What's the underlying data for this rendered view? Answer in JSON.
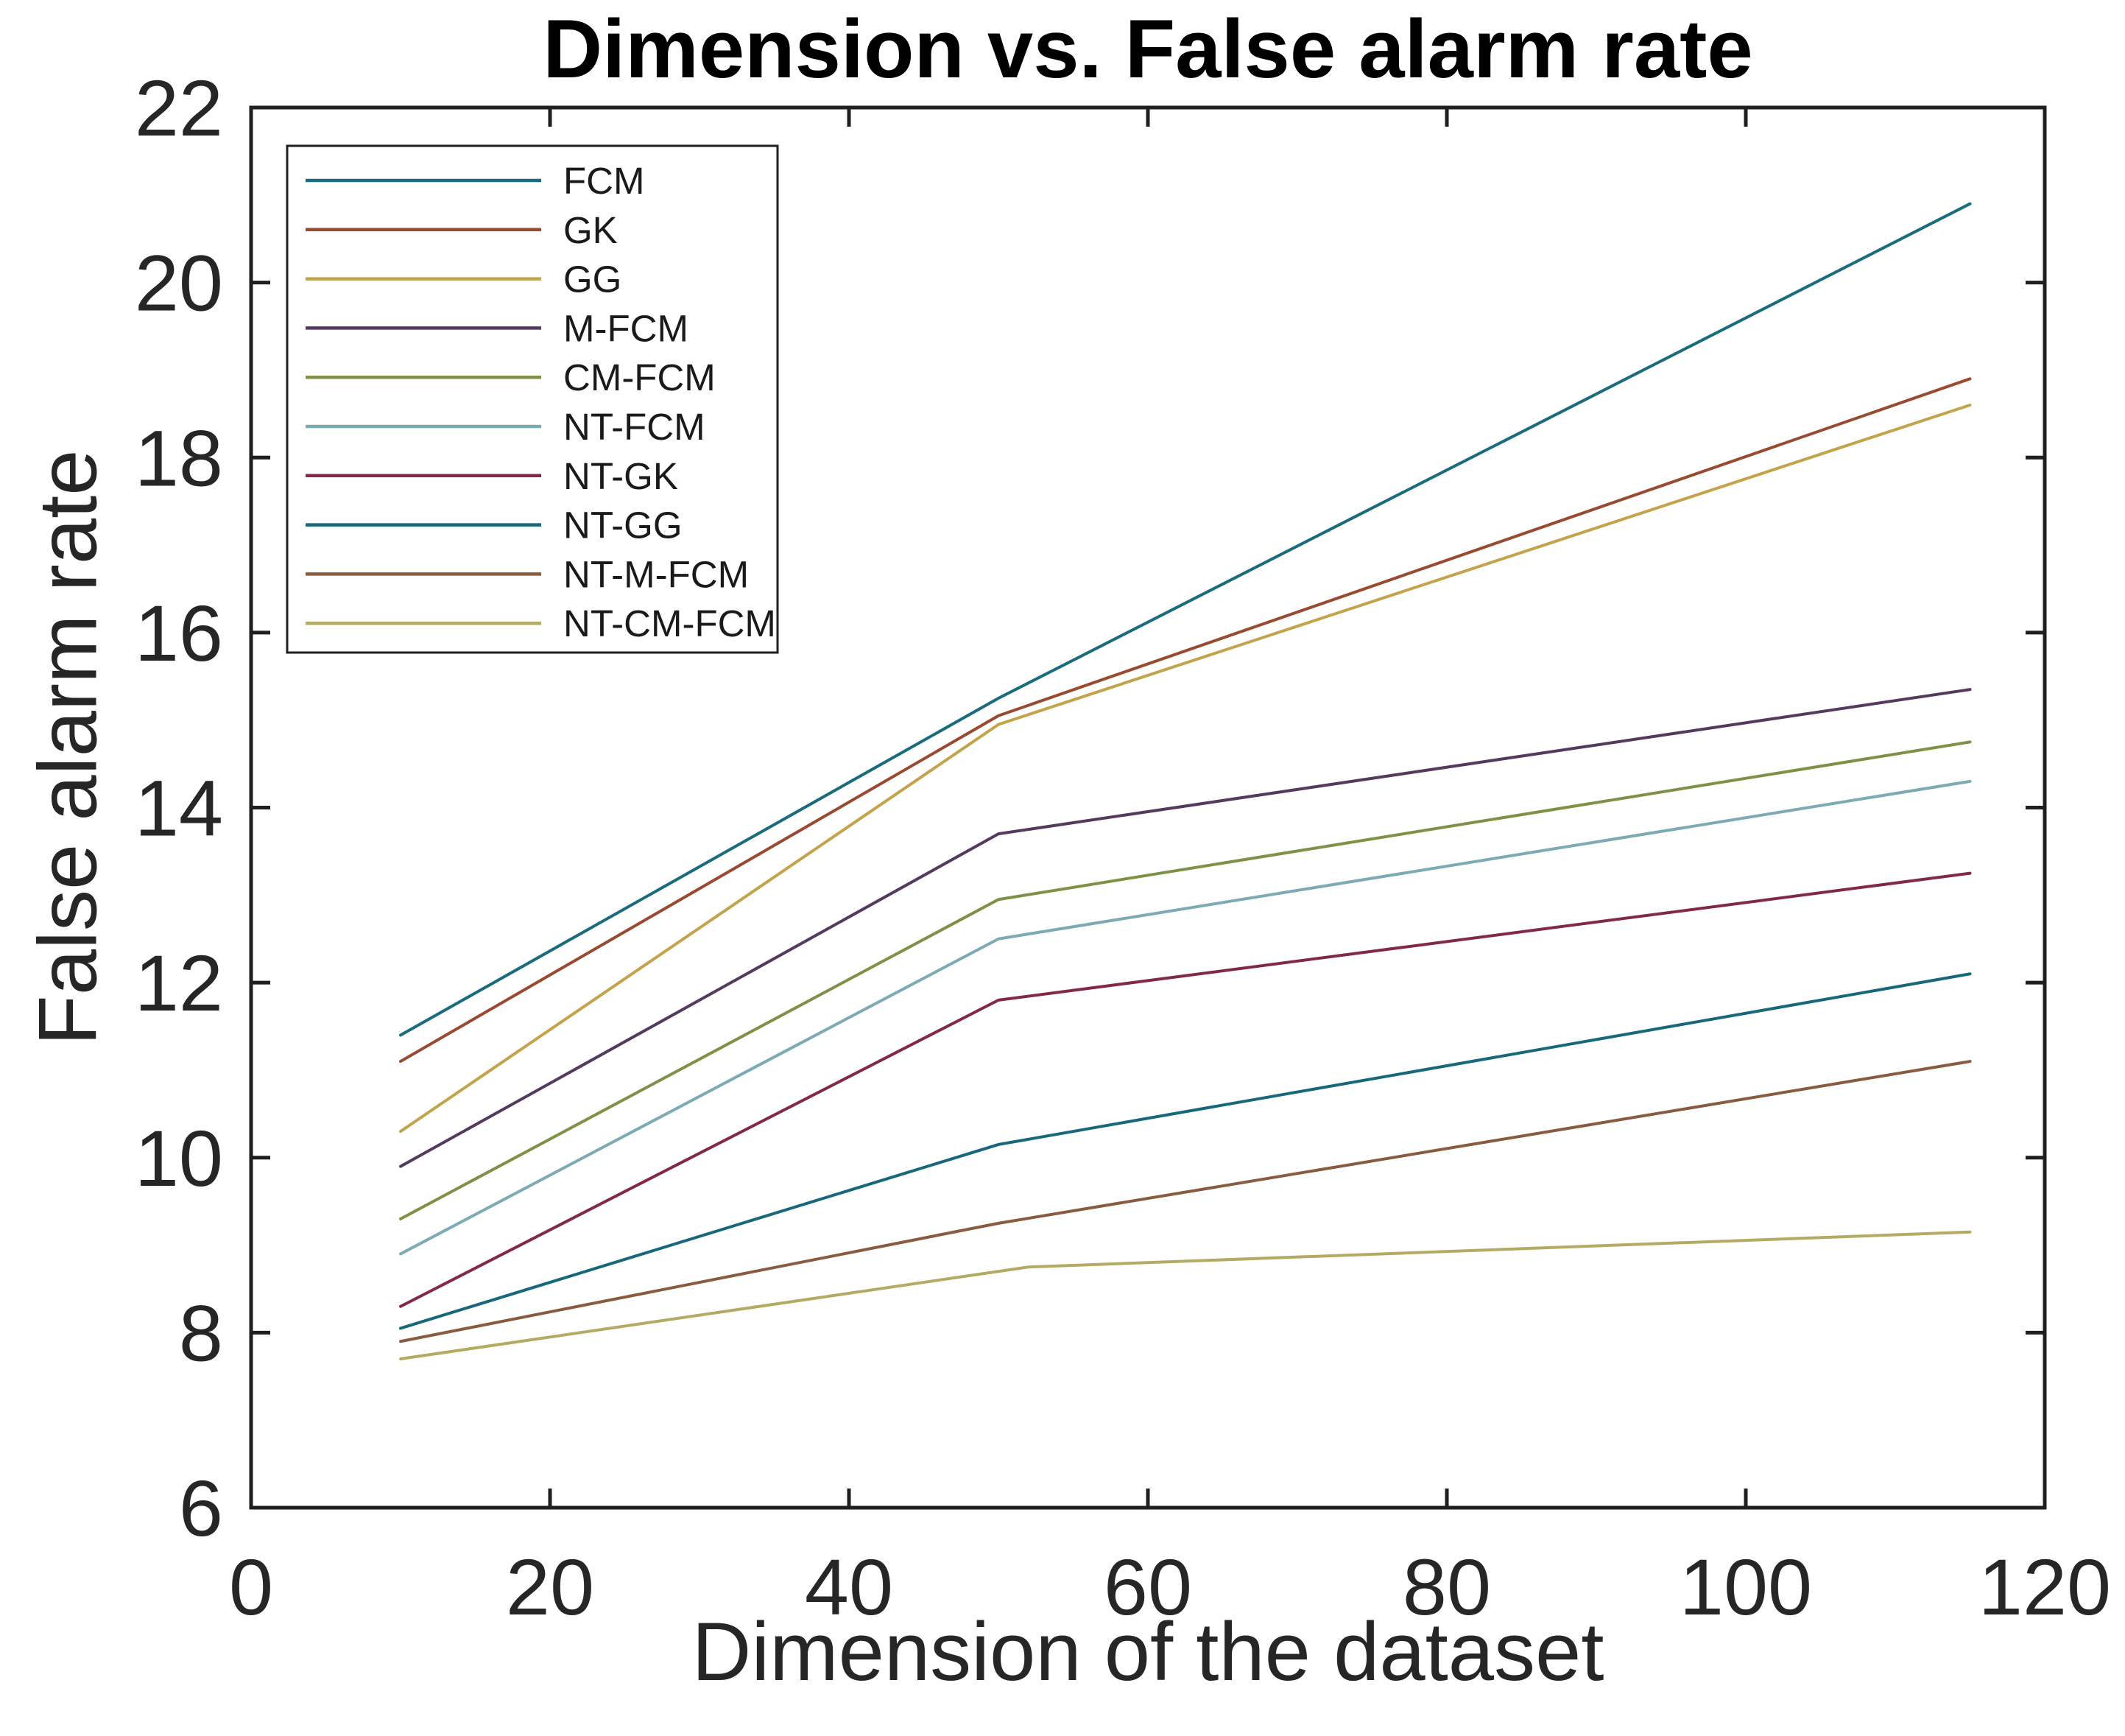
{
  "figure": {
    "background": "#ffffff",
    "axis_color": "#1f1f1f",
    "text_color": "#262626"
  },
  "chart_data": {
    "type": "line",
    "title": "Dimension vs. False alarm rate",
    "xlabel": "Dimension of the dataset",
    "ylabel": "False alarm rate",
    "xlim": [
      0,
      120
    ],
    "ylim": [
      6,
      22
    ],
    "xticks": [
      0,
      20,
      40,
      60,
      80,
      100,
      120
    ],
    "yticks": [
      6,
      8,
      10,
      12,
      14,
      16,
      18,
      20,
      22
    ],
    "grid": false,
    "legend_position": "top-left",
    "series": [
      {
        "name": "FCM",
        "color": "#1a6b7d",
        "x": [
          10,
          50,
          115
        ],
        "y": [
          11.4,
          15.25,
          20.9
        ]
      },
      {
        "name": "GK",
        "color": "#9a4a31",
        "x": [
          10,
          50,
          115
        ],
        "y": [
          11.1,
          15.05,
          18.9
        ]
      },
      {
        "name": "GG",
        "color": "#c3a44d",
        "x": [
          10,
          50,
          115
        ],
        "y": [
          10.3,
          14.95,
          18.6
        ]
      },
      {
        "name": "M-FCM",
        "color": "#543a5e",
        "x": [
          10,
          50,
          115
        ],
        "y": [
          9.9,
          13.7,
          15.35
        ]
      },
      {
        "name": "CM-FCM",
        "color": "#7e9147",
        "x": [
          10,
          50,
          115
        ],
        "y": [
          9.3,
          12.95,
          14.75
        ]
      },
      {
        "name": "NT-FCM",
        "color": "#7caab5",
        "x": [
          10,
          50,
          115
        ],
        "y": [
          8.9,
          12.5,
          14.3
        ]
      },
      {
        "name": "NT-GK",
        "color": "#822a44",
        "x": [
          10,
          50,
          115
        ],
        "y": [
          8.3,
          11.8,
          13.25
        ]
      },
      {
        "name": "NT-GG",
        "color": "#17687a",
        "x": [
          10,
          50,
          115
        ],
        "y": [
          8.05,
          10.15,
          12.1
        ]
      },
      {
        "name": "NT-M-FCM",
        "color": "#8a5a41",
        "x": [
          10,
          50,
          115
        ],
        "y": [
          7.9,
          9.25,
          11.1
        ]
      },
      {
        "name": "NT-CM-FCM",
        "color": "#b3ab62",
        "x": [
          10,
          52,
          115
        ],
        "y": [
          7.7,
          8.75,
          9.15
        ]
      }
    ]
  }
}
